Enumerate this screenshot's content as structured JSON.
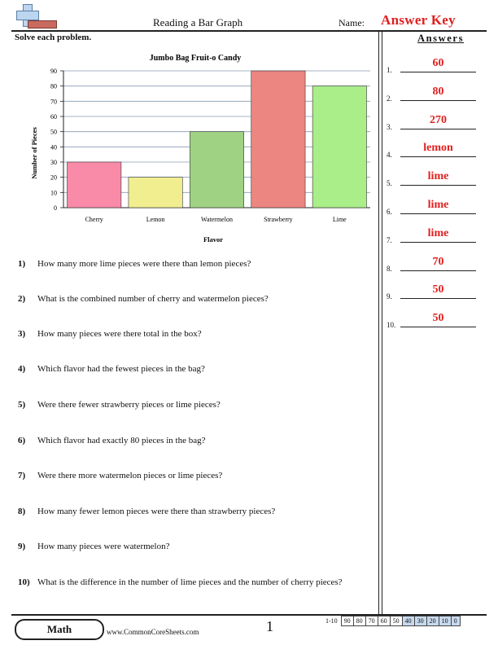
{
  "header": {
    "title": "Reading a Bar Graph",
    "name_label": "Name:",
    "answer_key": "Answer Key",
    "instructions": "Solve each problem."
  },
  "chart_data": {
    "type": "bar",
    "title": "Jumbo Bag Fruit-o Candy",
    "xlabel": "Flavor",
    "ylabel": "Number of Pieces",
    "categories": [
      "Cherry",
      "Lemon",
      "Watermelon",
      "Strawberry",
      "Lime"
    ],
    "values": [
      30,
      20,
      50,
      90,
      80
    ],
    "colors": [
      "#f98aa8",
      "#f0ee8f",
      "#9fd383",
      "#ec8680",
      "#a9ee88"
    ],
    "ylim": [
      0,
      90
    ],
    "yticks": [
      0,
      10,
      20,
      30,
      40,
      50,
      60,
      70,
      80,
      90
    ],
    "grid": true
  },
  "questions": [
    {
      "num": "1)",
      "text": "How many more lime pieces were there than lemon pieces?"
    },
    {
      "num": "2)",
      "text": "What is the combined number of cherry and watermelon pieces?"
    },
    {
      "num": "3)",
      "text": "How many pieces were there total in the box?"
    },
    {
      "num": "4)",
      "text": "Which flavor had the fewest pieces in the bag?"
    },
    {
      "num": "5)",
      "text": "Were there fewer strawberry pieces or lime pieces?"
    },
    {
      "num": "6)",
      "text": "Which flavor had exactly 80 pieces in the bag?"
    },
    {
      "num": "7)",
      "text": "Were there more watermelon pieces or lime pieces?"
    },
    {
      "num": "8)",
      "text": "How many fewer lemon pieces were there than strawberry pieces?"
    },
    {
      "num": "9)",
      "text": "How many pieces were watermelon?"
    },
    {
      "num": "10)",
      "text": "What is the difference in the number of lime pieces and the number of cherry pieces?"
    }
  ],
  "answers": {
    "title": "Answers",
    "items": [
      {
        "num": "1.",
        "value": "60"
      },
      {
        "num": "2.",
        "value": "80"
      },
      {
        "num": "3.",
        "value": "270"
      },
      {
        "num": "4.",
        "value": "lemon"
      },
      {
        "num": "5.",
        "value": "lime"
      },
      {
        "num": "6.",
        "value": "lime"
      },
      {
        "num": "7.",
        "value": "lime"
      },
      {
        "num": "8.",
        "value": "70"
      },
      {
        "num": "9.",
        "value": "50"
      },
      {
        "num": "10.",
        "value": "50"
      }
    ]
  },
  "footer": {
    "subject": "Math",
    "website": "www.CommonCoreSheets.com",
    "page": "1",
    "score_label": "1-10",
    "scores": [
      "90",
      "80",
      "70",
      "60",
      "50",
      "40",
      "30",
      "20",
      "10",
      "0"
    ],
    "highlight_from_index": 5
  }
}
